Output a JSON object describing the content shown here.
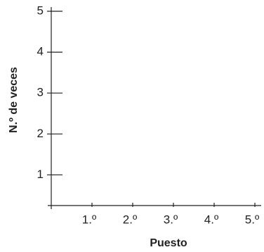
{
  "chart_data": {
    "type": "bar",
    "x_label": "Puesto",
    "y_label": "N.º de veces",
    "categories": [
      "1.º",
      "2.º",
      "3.º",
      "4.º",
      "5.º"
    ],
    "ylim": [
      0.25,
      5
    ],
    "yticks": [
      1,
      2,
      3,
      4,
      5
    ],
    "grid": false
  }
}
